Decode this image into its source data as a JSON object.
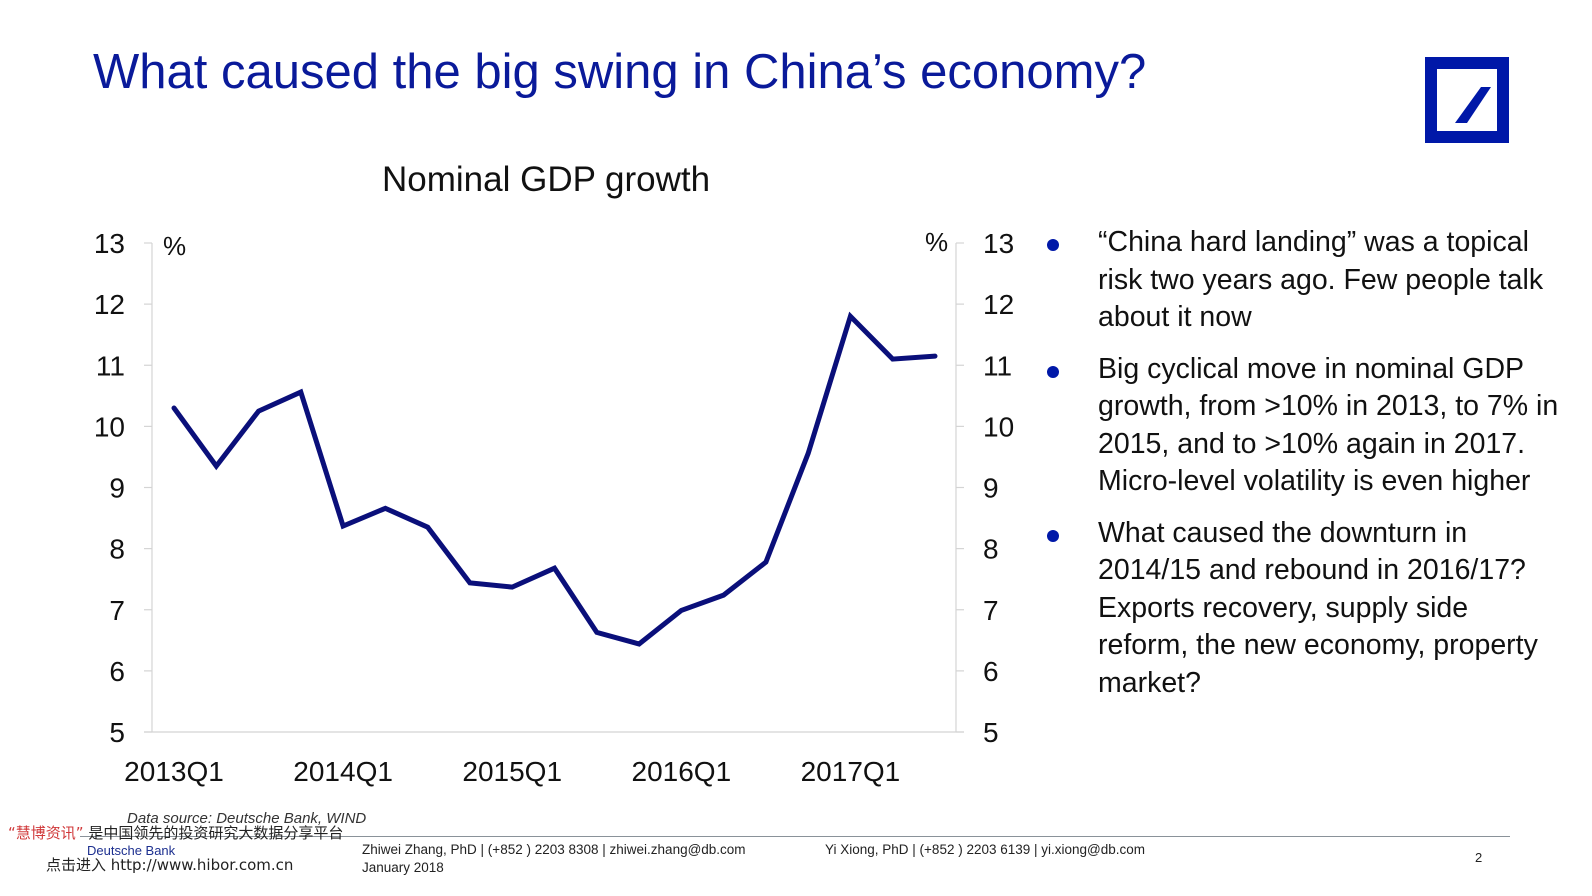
{
  "slide": {
    "title": "What caused the big swing in China’s economy?",
    "logo": "deutsche-bank-logo",
    "brand_color": "#0018a8",
    "title_color": "#0a1a9a"
  },
  "chart_data": {
    "type": "line",
    "title": "Nominal GDP growth",
    "xlabel": "",
    "ylabel": "%",
    "ylabel_right": "%",
    "ylim": [
      5,
      13
    ],
    "yticks": [
      5,
      6,
      7,
      8,
      9,
      10,
      11,
      12,
      13
    ],
    "x": [
      "2013Q1",
      "2013Q2",
      "2013Q3",
      "2013Q4",
      "2014Q1",
      "2014Q2",
      "2014Q3",
      "2014Q4",
      "2015Q1",
      "2015Q2",
      "2015Q3",
      "2015Q4",
      "2016Q1",
      "2016Q2",
      "2016Q3",
      "2016Q4",
      "2017Q1",
      "2017Q2",
      "2017Q3"
    ],
    "xtick_labels": [
      "2013Q1",
      "2014Q1",
      "2015Q1",
      "2016Q1",
      "2017Q1"
    ],
    "series": [
      {
        "name": "Nominal GDP growth",
        "color": "#0a0f7a",
        "values": [
          10.3,
          9.35,
          10.25,
          10.56,
          8.37,
          8.66,
          8.35,
          7.44,
          7.37,
          7.68,
          6.63,
          6.44,
          6.99,
          7.24,
          7.78,
          9.56,
          11.8,
          11.1,
          11.15
        ]
      }
    ],
    "grid": false,
    "legend": "none",
    "source": "Data source: Deutsche Bank, WIND"
  },
  "bullets": [
    "“China hard landing” was a topical risk two years ago. Few people talk about it now",
    "Big cyclical move in nominal GDP growth, from >10% in 2013, to 7% in 2015, and to >10% again in 2017. Micro-level volatility is even higher",
    "What caused the downturn in 2014/15 and rebound in 2016/17? Exports recovery, supply side reform, the new economy, property market?"
  ],
  "footer": {
    "brand": "Deutsche Bank",
    "contact1": "Zhiwei Zhang, PhD | (+852 ) 2203 8308 | zhiwei.zhang@db.com",
    "contact2": "Yi Xiong, PhD | (+852 ) 2203 6139 | yi.xiong@db.com",
    "date": "January 2018",
    "page": "2"
  },
  "watermark": {
    "quote_name": "“慧博资讯”",
    "tagline": " 是中国领先的投资研究大数据分享平台",
    "link_text": "点击进入 http://www.hibor.com.cn"
  }
}
